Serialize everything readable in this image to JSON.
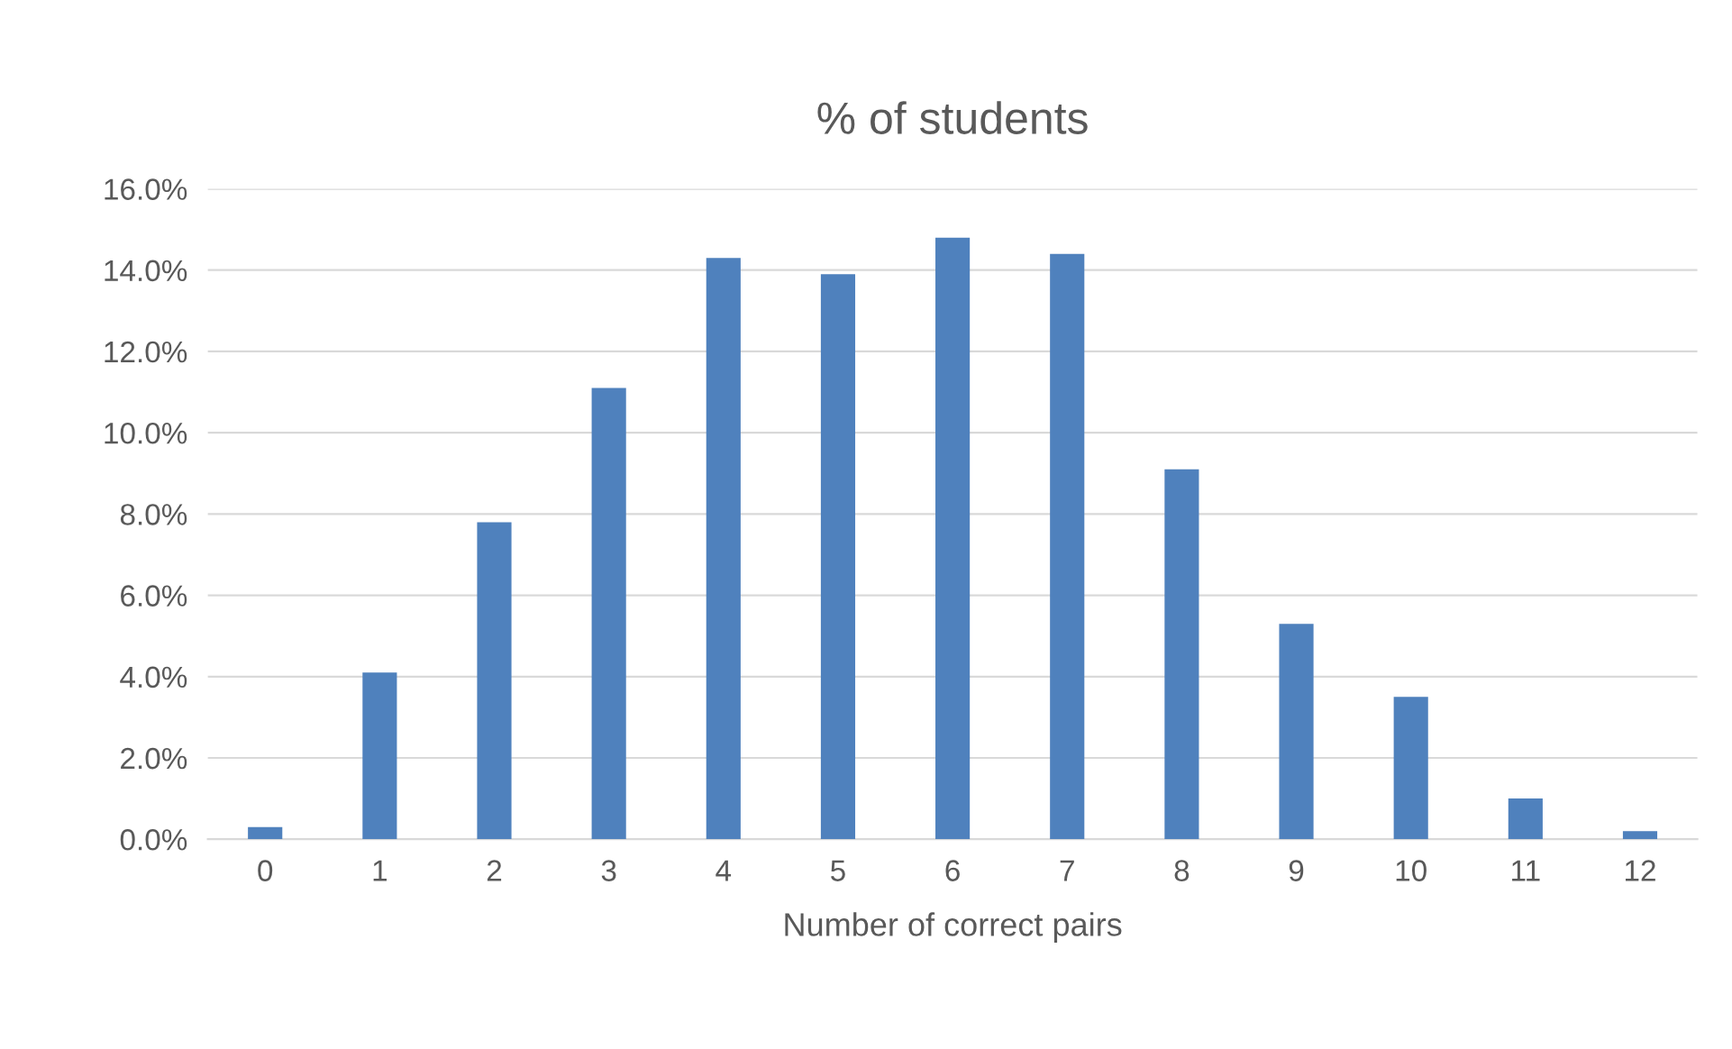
{
  "chart_data": {
    "type": "bar",
    "title": "% of students",
    "xlabel": "Number of correct pairs",
    "categories": [
      "0",
      "1",
      "2",
      "3",
      "4",
      "5",
      "6",
      "7",
      "8",
      "9",
      "10",
      "11",
      "12"
    ],
    "values": [
      0.3,
      4.1,
      7.8,
      11.1,
      14.3,
      13.9,
      14.8,
      14.4,
      9.1,
      5.3,
      3.5,
      1.0,
      0.2
    ],
    "color": "#4f81bd",
    "ylim": [
      0,
      16
    ],
    "yticks": [
      {
        "value": 0,
        "label": "0.0%"
      },
      {
        "value": 2,
        "label": "2.0%"
      },
      {
        "value": 4,
        "label": "4.0%"
      },
      {
        "value": 6,
        "label": "6.0%"
      },
      {
        "value": 8,
        "label": "8.0%"
      },
      {
        "value": 10,
        "label": "10.0%"
      },
      {
        "value": 12,
        "label": "12.0%"
      },
      {
        "value": 14,
        "label": "14.0%"
      },
      {
        "value": 16,
        "label": "16.0%"
      }
    ],
    "grid": "y",
    "legend": false
  }
}
